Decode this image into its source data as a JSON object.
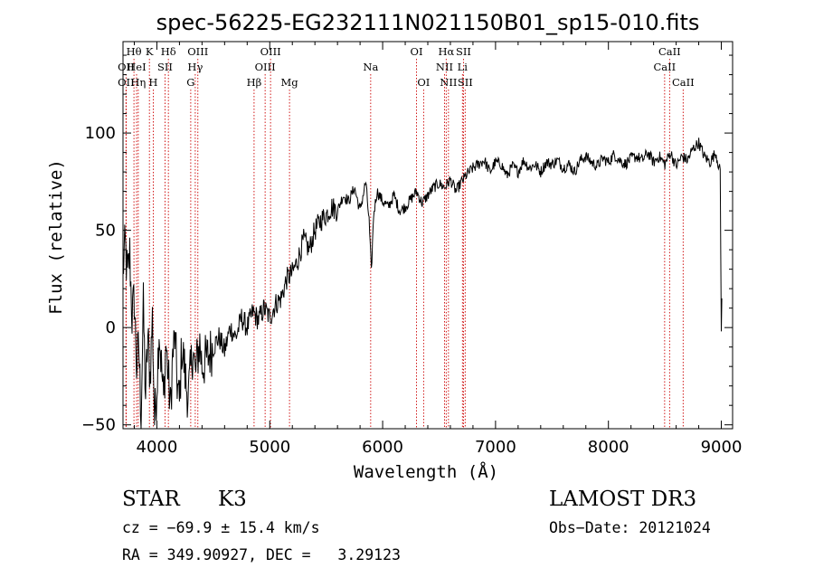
{
  "chart_data": {
    "type": "line",
    "title": "spec-56225-EG232111N021150B01_sp15-010.fits",
    "xlabel": "Wavelength (Å)",
    "ylabel": "Flux (relative)",
    "xlim": [
      3700,
      9100
    ],
    "ylim": [
      -52,
      147
    ],
    "xticks": [
      {
        "value": 4000,
        "label": "4000"
      },
      {
        "value": 5000,
        "label": "5000"
      },
      {
        "value": 6000,
        "label": "6000"
      },
      {
        "value": 7000,
        "label": "7000"
      },
      {
        "value": 8000,
        "label": "8000"
      },
      {
        "value": 9000,
        "label": "9000"
      }
    ],
    "yticks": [
      {
        "value": -50,
        "label": "−50"
      },
      {
        "value": 0,
        "label": "0"
      },
      {
        "value": 50,
        "label": "50"
      },
      {
        "value": 100,
        "label": "100"
      }
    ],
    "series": [
      {
        "name": "spectrum",
        "color": "#000000",
        "x": [
          3700,
          3720,
          3740,
          3760,
          3780,
          3800,
          3820,
          3840,
          3860,
          3880,
          3900,
          3920,
          3940,
          3960,
          3980,
          4000,
          4020,
          4040,
          4060,
          4080,
          4100,
          4120,
          4140,
          4160,
          4180,
          4200,
          4220,
          4240,
          4260,
          4280,
          4300,
          4320,
          4340,
          4360,
          4380,
          4400,
          4450,
          4500,
          4550,
          4600,
          4650,
          4700,
          4750,
          4800,
          4850,
          4900,
          4950,
          5000,
          5050,
          5100,
          5150,
          5200,
          5250,
          5300,
          5350,
          5400,
          5450,
          5500,
          5550,
          5600,
          5650,
          5700,
          5750,
          5800,
          5850,
          5880,
          5900,
          5920,
          5950,
          6000,
          6050,
          6100,
          6150,
          6200,
          6250,
          6300,
          6350,
          6400,
          6450,
          6500,
          6550,
          6600,
          6650,
          6700,
          6750,
          6800,
          6850,
          6900,
          6950,
          7000,
          7050,
          7100,
          7150,
          7200,
          7250,
          7300,
          7350,
          7400,
          7450,
          7500,
          7550,
          7600,
          7650,
          7700,
          7750,
          7800,
          7850,
          7900,
          7950,
          8000,
          8050,
          8100,
          8150,
          8200,
          8250,
          8300,
          8350,
          8400,
          8450,
          8500,
          8550,
          8600,
          8650,
          8700,
          8750,
          8800,
          8850,
          8900,
          8950,
          8990,
          9000,
          9005
        ],
        "y": [
          30,
          42,
          25,
          38,
          5,
          15,
          -20,
          -10,
          -45,
          10,
          -35,
          -5,
          -25,
          5,
          -48,
          -30,
          0,
          -20,
          -38,
          -8,
          -25,
          -42,
          -15,
          -5,
          -28,
          -40,
          -10,
          -18,
          -30,
          -35,
          -22,
          -10,
          -25,
          -15,
          -8,
          -20,
          -15,
          -10,
          -5,
          -12,
          0,
          -5,
          5,
          0,
          8,
          4,
          10,
          5,
          12,
          15,
          25,
          28,
          35,
          45,
          40,
          50,
          55,
          58,
          62,
          60,
          68,
          65,
          72,
          60,
          75,
          55,
          28,
          58,
          70,
          65,
          62,
          68,
          60,
          62,
          66,
          70,
          64,
          68,
          72,
          74,
          72,
          76,
          70,
          75,
          79,
          82,
          84,
          86,
          80,
          85,
          84,
          78,
          83,
          80,
          86,
          82,
          84,
          80,
          85,
          84,
          86,
          82,
          84,
          80,
          86,
          88,
          85,
          83,
          87,
          85,
          89,
          86,
          84,
          87,
          88,
          86,
          90,
          85,
          88,
          84,
          90,
          83,
          88,
          86,
          92,
          95,
          88,
          85,
          90,
          80,
          -3,
          15
        ]
      }
    ],
    "spectral_lines": [
      {
        "wavelength": 3727,
        "label": "OII",
        "row": 2
      },
      {
        "wavelength": 3727,
        "label": "OII",
        "row": 3
      },
      {
        "wavelength": 3797,
        "label": "Hθ",
        "row": 1
      },
      {
        "wavelength": 3820,
        "label": "HeI",
        "row": 2
      },
      {
        "wavelength": 3835,
        "label": "Hη",
        "row": 3
      },
      {
        "wavelength": 3934,
        "label": "K",
        "row": 1
      },
      {
        "wavelength": 3968,
        "label": "H",
        "row": 3
      },
      {
        "wavelength": 4072,
        "label": "SII",
        "row": 2
      },
      {
        "wavelength": 4102,
        "label": "Hδ",
        "row": 1
      },
      {
        "wavelength": 4300,
        "label": "G",
        "row": 3
      },
      {
        "wavelength": 4340,
        "label": "Hγ",
        "row": 2
      },
      {
        "wavelength": 4363,
        "label": "OIII",
        "row": 1
      },
      {
        "wavelength": 4861,
        "label": "Hβ",
        "row": 3
      },
      {
        "wavelength": 4959,
        "label": "OIII",
        "row": 2
      },
      {
        "wavelength": 5007,
        "label": "OIII",
        "row": 1
      },
      {
        "wavelength": 5175,
        "label": "Mg",
        "row": 3
      },
      {
        "wavelength": 5894,
        "label": "Na",
        "row": 2
      },
      {
        "wavelength": 6300,
        "label": "OI",
        "row": 1
      },
      {
        "wavelength": 6363,
        "label": "OI",
        "row": 3
      },
      {
        "wavelength": 6548,
        "label": "NII",
        "row": 2
      },
      {
        "wavelength": 6563,
        "label": "Hα",
        "row": 1
      },
      {
        "wavelength": 6583,
        "label": "NII",
        "row": 3
      },
      {
        "wavelength": 6707,
        "label": "Li",
        "row": 2
      },
      {
        "wavelength": 6716,
        "label": "SII",
        "row": 1
      },
      {
        "wavelength": 6731,
        "label": "SII",
        "row": 3
      },
      {
        "wavelength": 8498,
        "label": "CaII",
        "row": 2
      },
      {
        "wavelength": 8542,
        "label": "CaII",
        "row": 1
      },
      {
        "wavelength": 8662,
        "label": "CaII",
        "row": 3
      }
    ]
  },
  "info": {
    "object_class": "STAR",
    "subclass": "K3",
    "survey": "LAMOST DR3",
    "redshift_text": "cz = −69.9 ± 15.4 km/s",
    "obs_date_text": "Obs−Date: 20121024",
    "coords_text": "RA = 349.90927, DEC =   3.29123"
  },
  "colors": {
    "line_marker": "#cc0000",
    "spectrum": "#000000",
    "axes": "#000000"
  }
}
